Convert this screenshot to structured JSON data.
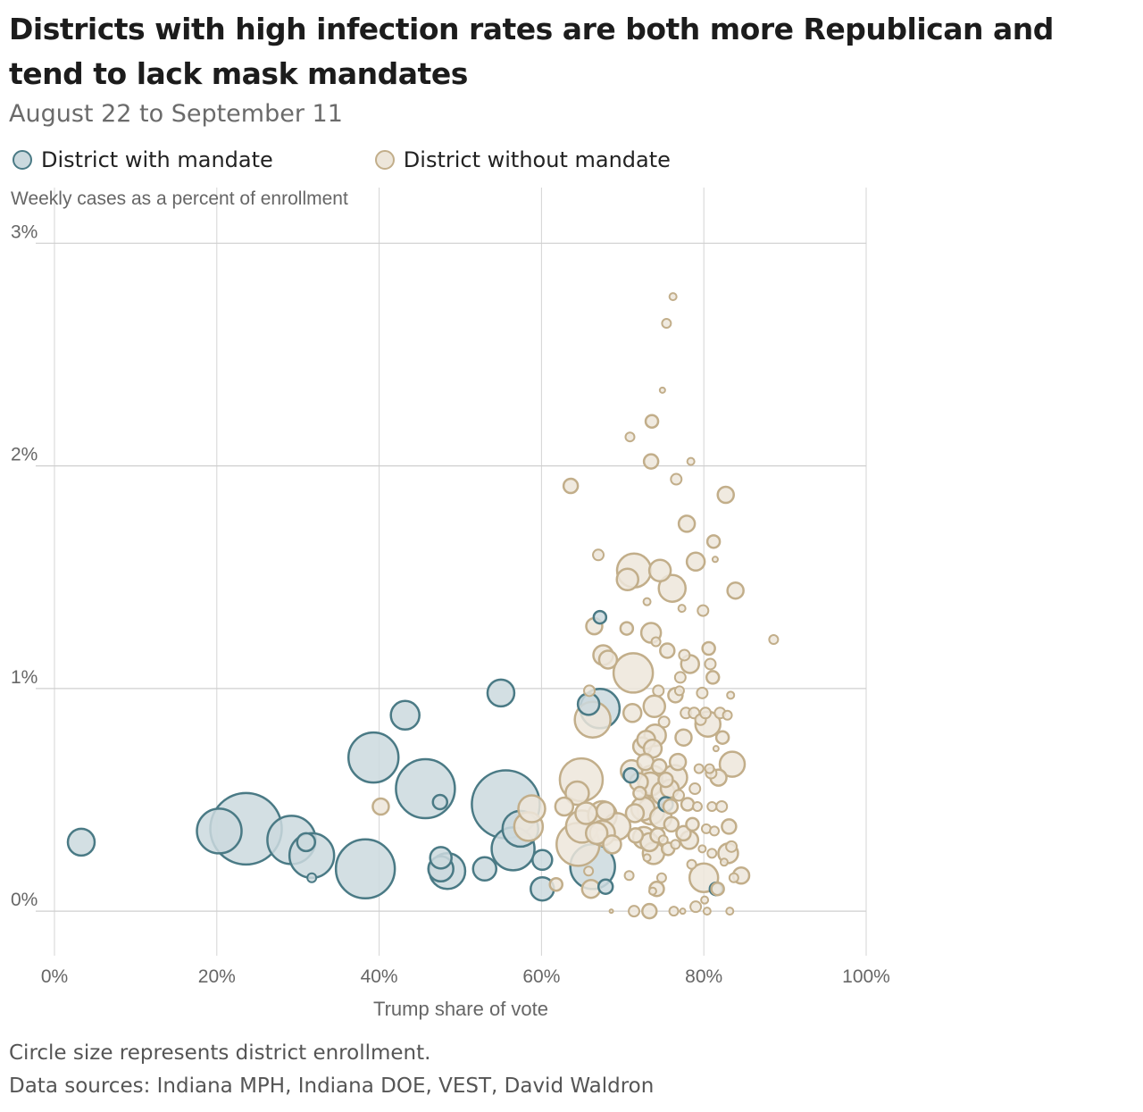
{
  "title": "Districts with high infection rates are both more Republican and tend to lack mask mandates",
  "subtitle": "August 22 to September 11",
  "legend": [
    {
      "label": "District with mandate",
      "fill": "#cbd9de",
      "stroke": "#4a7a85"
    },
    {
      "label": "District without mandate",
      "fill": "#ede6da",
      "stroke": "#c2ae8a"
    }
  ],
  "footnotes": {
    "note": "Circle size represents district enrollment.",
    "sources": "Data sources: Indiana MPH, Indiana DOE, VEST, David Waldron"
  },
  "chart_data": {
    "type": "scatter",
    "xlabel": "Trump share of vote",
    "ylabel": "Weekly cases as a percent of enrollment",
    "xlim": [
      0,
      100
    ],
    "ylim": [
      -0.2,
      3.25
    ],
    "x_ticks": [
      0,
      20,
      40,
      60,
      80,
      100
    ],
    "x_tick_labels": [
      "0%",
      "20%",
      "40%",
      "60%",
      "80%",
      "100%"
    ],
    "y_ticks": [
      0,
      1,
      2,
      3
    ],
    "y_tick_labels": [
      "0%",
      "1%",
      "2%",
      "3%"
    ],
    "grid": true,
    "size_encoding": "district enrollment (relative radius)",
    "series": [
      {
        "name": "District with mandate",
        "color_fill": "#cbd9de",
        "color_stroke": "#4a7a85",
        "points": [
          {
            "x": 3.3,
            "y": 0.31,
            "r": 15
          },
          {
            "x": 20.3,
            "y": 0.36,
            "r": 25
          },
          {
            "x": 23.6,
            "y": 0.37,
            "r": 40
          },
          {
            "x": 29.2,
            "y": 0.32,
            "r": 27
          },
          {
            "x": 31.0,
            "y": 0.31,
            "r": 10
          },
          {
            "x": 31.7,
            "y": 0.25,
            "r": 25
          },
          {
            "x": 31.7,
            "y": 0.15,
            "r": 5
          },
          {
            "x": 38.3,
            "y": 0.19,
            "r": 33
          },
          {
            "x": 39.3,
            "y": 0.69,
            "r": 28
          },
          {
            "x": 43.2,
            "y": 0.88,
            "r": 16
          },
          {
            "x": 45.7,
            "y": 0.55,
            "r": 33
          },
          {
            "x": 47.5,
            "y": 0.49,
            "r": 8
          },
          {
            "x": 47.6,
            "y": 0.24,
            "r": 12
          },
          {
            "x": 47.6,
            "y": 0.19,
            "r": 14
          },
          {
            "x": 48.4,
            "y": 0.18,
            "r": 20
          },
          {
            "x": 53.0,
            "y": 0.19,
            "r": 13
          },
          {
            "x": 55.0,
            "y": 0.98,
            "r": 15
          },
          {
            "x": 55.6,
            "y": 0.48,
            "r": 38
          },
          {
            "x": 56.5,
            "y": 0.28,
            "r": 24
          },
          {
            "x": 57.4,
            "y": 0.37,
            "r": 20
          },
          {
            "x": 60.1,
            "y": 0.23,
            "r": 11
          },
          {
            "x": 60.1,
            "y": 0.1,
            "r": 13
          },
          {
            "x": 65.8,
            "y": 0.93,
            "r": 12
          },
          {
            "x": 66.3,
            "y": 0.2,
            "r": 25
          },
          {
            "x": 67.2,
            "y": 1.32,
            "r": 7
          },
          {
            "x": 67.2,
            "y": 0.91,
            "r": 22
          },
          {
            "x": 67.9,
            "y": 0.11,
            "r": 8
          },
          {
            "x": 71.0,
            "y": 0.61,
            "r": 8
          },
          {
            "x": 75.3,
            "y": 0.48,
            "r": 8
          },
          {
            "x": 81.5,
            "y": 0.1,
            "r": 7
          }
        ]
      },
      {
        "name": "District without mandate",
        "color_fill": "#ede6da",
        "color_stroke": "#c2ae8a",
        "points": [
          {
            "x": 40.2,
            "y": 0.47,
            "r": 9
          },
          {
            "x": 58.4,
            "y": 0.38,
            "r": 16
          },
          {
            "x": 58.8,
            "y": 0.46,
            "r": 15
          },
          {
            "x": 61.8,
            "y": 0.12,
            "r": 7
          },
          {
            "x": 62.8,
            "y": 0.47,
            "r": 10
          },
          {
            "x": 63.6,
            "y": 1.91,
            "r": 8
          },
          {
            "x": 64.4,
            "y": 0.53,
            "r": 13
          },
          {
            "x": 64.5,
            "y": 0.3,
            "r": 24
          },
          {
            "x": 64.9,
            "y": 0.59,
            "r": 24
          },
          {
            "x": 65.0,
            "y": 0.38,
            "r": 18
          },
          {
            "x": 65.5,
            "y": 0.44,
            "r": 12
          },
          {
            "x": 65.8,
            "y": 0.18,
            "r": 5
          },
          {
            "x": 65.9,
            "y": 0.99,
            "r": 6
          },
          {
            "x": 66.1,
            "y": 0.1,
            "r": 10
          },
          {
            "x": 66.3,
            "y": 0.86,
            "r": 20
          },
          {
            "x": 66.5,
            "y": 1.28,
            "r": 9
          },
          {
            "x": 66.8,
            "y": 0.35,
            "r": 12
          },
          {
            "x": 67.0,
            "y": 1.6,
            "r": 6
          },
          {
            "x": 67.5,
            "y": 0.35,
            "r": 14
          },
          {
            "x": 67.5,
            "y": 0.43,
            "r": 16
          },
          {
            "x": 67.6,
            "y": 1.15,
            "r": 11
          },
          {
            "x": 67.9,
            "y": 0.45,
            "r": 10
          },
          {
            "x": 68.2,
            "y": 1.13,
            "r": 10
          },
          {
            "x": 68.6,
            "y": 0.0,
            "r": 2
          },
          {
            "x": 68.7,
            "y": 0.3,
            "r": 10
          },
          {
            "x": 69.3,
            "y": 0.38,
            "r": 15
          },
          {
            "x": 70.5,
            "y": 1.27,
            "r": 7
          },
          {
            "x": 70.6,
            "y": 1.49,
            "r": 12
          },
          {
            "x": 70.8,
            "y": 0.16,
            "r": 5
          },
          {
            "x": 70.9,
            "y": 2.13,
            "r": 5
          },
          {
            "x": 71.1,
            "y": 0.63,
            "r": 12
          },
          {
            "x": 71.2,
            "y": 0.89,
            "r": 10
          },
          {
            "x": 71.3,
            "y": 1.07,
            "r": 22
          },
          {
            "x": 71.4,
            "y": 0.0,
            "r": 6
          },
          {
            "x": 71.4,
            "y": 1.53,
            "r": 19
          },
          {
            "x": 71.5,
            "y": 0.44,
            "r": 10
          },
          {
            "x": 71.6,
            "y": 0.34,
            "r": 8
          },
          {
            "x": 72.0,
            "y": 0.58,
            "r": 10
          },
          {
            "x": 72.1,
            "y": 0.53,
            "r": 7
          },
          {
            "x": 72.4,
            "y": 0.74,
            "r": 10
          },
          {
            "x": 72.5,
            "y": 0.46,
            "r": 13
          },
          {
            "x": 72.6,
            "y": 0.33,
            "r": 12
          },
          {
            "x": 72.8,
            "y": 0.67,
            "r": 9
          },
          {
            "x": 72.9,
            "y": 0.77,
            "r": 10
          },
          {
            "x": 73.0,
            "y": 1.39,
            "r": 4
          },
          {
            "x": 73.0,
            "y": 0.24,
            "r": 4
          },
          {
            "x": 73.3,
            "y": 0.0,
            "r": 8
          },
          {
            "x": 73.3,
            "y": 0.31,
            "r": 10
          },
          {
            "x": 73.4,
            "y": 0.57,
            "r": 13
          },
          {
            "x": 73.5,
            "y": 0.45,
            "r": 15
          },
          {
            "x": 73.5,
            "y": 1.25,
            "r": 11
          },
          {
            "x": 73.5,
            "y": 2.02,
            "r": 8
          },
          {
            "x": 73.6,
            "y": 2.2,
            "r": 7
          },
          {
            "x": 73.6,
            "y": 0.59,
            "r": 16
          },
          {
            "x": 73.7,
            "y": 0.73,
            "r": 10
          },
          {
            "x": 73.7,
            "y": 0.09,
            "r": 4
          },
          {
            "x": 73.8,
            "y": 0.26,
            "r": 12
          },
          {
            "x": 73.9,
            "y": 0.92,
            "r": 12
          },
          {
            "x": 74.0,
            "y": 0.79,
            "r": 12
          },
          {
            "x": 74.1,
            "y": 1.21,
            "r": 5
          },
          {
            "x": 74.2,
            "y": 0.1,
            "r": 8
          },
          {
            "x": 74.3,
            "y": 0.34,
            "r": 8
          },
          {
            "x": 74.4,
            "y": 0.99,
            "r": 6
          },
          {
            "x": 74.5,
            "y": 0.65,
            "r": 8
          },
          {
            "x": 74.6,
            "y": 1.53,
            "r": 12
          },
          {
            "x": 74.7,
            "y": 0.42,
            "r": 12
          },
          {
            "x": 74.8,
            "y": 0.15,
            "r": 5
          },
          {
            "x": 74.9,
            "y": 2.34,
            "r": 3
          },
          {
            "x": 75.0,
            "y": 0.53,
            "r": 13
          },
          {
            "x": 75.0,
            "y": 0.32,
            "r": 5
          },
          {
            "x": 75.1,
            "y": 0.85,
            "r": 6
          },
          {
            "x": 75.3,
            "y": 0.59,
            "r": 8
          },
          {
            "x": 75.4,
            "y": 2.64,
            "r": 5
          },
          {
            "x": 75.5,
            "y": 1.17,
            "r": 8
          },
          {
            "x": 75.6,
            "y": 0.28,
            "r": 7
          },
          {
            "x": 75.8,
            "y": 0.55,
            "r": 10
          },
          {
            "x": 75.9,
            "y": 0.47,
            "r": 8
          },
          {
            "x": 76.0,
            "y": 0.39,
            "r": 8
          },
          {
            "x": 76.1,
            "y": 1.45,
            "r": 15
          },
          {
            "x": 76.2,
            "y": 2.76,
            "r": 4
          },
          {
            "x": 76.3,
            "y": 0.0,
            "r": 5
          },
          {
            "x": 76.4,
            "y": 0.6,
            "r": 14
          },
          {
            "x": 76.5,
            "y": 0.97,
            "r": 8
          },
          {
            "x": 76.5,
            "y": 0.3,
            "r": 5
          },
          {
            "x": 76.6,
            "y": 1.94,
            "r": 6
          },
          {
            "x": 76.8,
            "y": 0.67,
            "r": 9
          },
          {
            "x": 76.9,
            "y": 0.52,
            "r": 6
          },
          {
            "x": 77.0,
            "y": 0.99,
            "r": 5
          },
          {
            "x": 77.1,
            "y": 1.05,
            "r": 6
          },
          {
            "x": 77.3,
            "y": 1.36,
            "r": 4
          },
          {
            "x": 77.4,
            "y": 0.0,
            "r": 3
          },
          {
            "x": 77.5,
            "y": 0.35,
            "r": 8
          },
          {
            "x": 77.5,
            "y": 0.78,
            "r": 9
          },
          {
            "x": 77.6,
            "y": 1.15,
            "r": 6
          },
          {
            "x": 77.8,
            "y": 0.89,
            "r": 6
          },
          {
            "x": 77.9,
            "y": 1.74,
            "r": 9
          },
          {
            "x": 78.0,
            "y": 0.48,
            "r": 7
          },
          {
            "x": 78.2,
            "y": 0.32,
            "r": 10
          },
          {
            "x": 78.3,
            "y": 1.11,
            "r": 10
          },
          {
            "x": 78.4,
            "y": 2.02,
            "r": 4
          },
          {
            "x": 78.5,
            "y": 0.21,
            "r": 5
          },
          {
            "x": 78.6,
            "y": 0.39,
            "r": 7
          },
          {
            "x": 78.8,
            "y": 0.89,
            "r": 6
          },
          {
            "x": 78.9,
            "y": 0.55,
            "r": 6
          },
          {
            "x": 79.0,
            "y": 0.02,
            "r": 6
          },
          {
            "x": 79.0,
            "y": 1.57,
            "r": 10
          },
          {
            "x": 79.2,
            "y": 0.47,
            "r": 5
          },
          {
            "x": 79.4,
            "y": 0.64,
            "r": 5
          },
          {
            "x": 79.6,
            "y": 0.86,
            "r": 6
          },
          {
            "x": 79.8,
            "y": 0.28,
            "r": 4
          },
          {
            "x": 79.8,
            "y": 0.98,
            "r": 6
          },
          {
            "x": 79.9,
            "y": 1.35,
            "r": 6
          },
          {
            "x": 80.0,
            "y": 0.15,
            "r": 16
          },
          {
            "x": 80.1,
            "y": 0.05,
            "r": 4
          },
          {
            "x": 80.2,
            "y": 0.89,
            "r": 6
          },
          {
            "x": 80.3,
            "y": 0.37,
            "r": 5
          },
          {
            "x": 80.4,
            "y": 0.0,
            "r": 4
          },
          {
            "x": 80.5,
            "y": 0.84,
            "r": 14
          },
          {
            "x": 80.6,
            "y": 1.18,
            "r": 7
          },
          {
            "x": 80.7,
            "y": 0.64,
            "r": 5
          },
          {
            "x": 80.8,
            "y": 1.11,
            "r": 6
          },
          {
            "x": 80.9,
            "y": 0.62,
            "r": 6
          },
          {
            "x": 81.0,
            "y": 0.26,
            "r": 5
          },
          {
            "x": 81.0,
            "y": 0.47,
            "r": 5
          },
          {
            "x": 81.1,
            "y": 1.05,
            "r": 7
          },
          {
            "x": 81.2,
            "y": 1.66,
            "r": 7
          },
          {
            "x": 81.3,
            "y": 0.36,
            "r": 5
          },
          {
            "x": 81.4,
            "y": 1.58,
            "r": 3
          },
          {
            "x": 81.5,
            "y": 0.73,
            "r": 3
          },
          {
            "x": 81.7,
            "y": 0.1,
            "r": 7
          },
          {
            "x": 81.8,
            "y": 0.6,
            "r": 9
          },
          {
            "x": 82.0,
            "y": 0.89,
            "r": 6
          },
          {
            "x": 82.2,
            "y": 0.47,
            "r": 6
          },
          {
            "x": 82.3,
            "y": 0.78,
            "r": 7
          },
          {
            "x": 82.5,
            "y": 0.22,
            "r": 4
          },
          {
            "x": 82.7,
            "y": 1.87,
            "r": 9
          },
          {
            "x": 82.9,
            "y": 0.88,
            "r": 5
          },
          {
            "x": 83.0,
            "y": 0.26,
            "r": 11
          },
          {
            "x": 83.1,
            "y": 0.38,
            "r": 8
          },
          {
            "x": 83.2,
            "y": 0.0,
            "r": 4
          },
          {
            "x": 83.3,
            "y": 0.97,
            "r": 4
          },
          {
            "x": 83.4,
            "y": 0.29,
            "r": 6
          },
          {
            "x": 83.5,
            "y": 0.66,
            "r": 14
          },
          {
            "x": 83.7,
            "y": 0.15,
            "r": 5
          },
          {
            "x": 83.9,
            "y": 1.44,
            "r": 9
          },
          {
            "x": 84.6,
            "y": 0.16,
            "r": 9
          },
          {
            "x": 88.6,
            "y": 1.22,
            "r": 5
          }
        ]
      }
    ]
  }
}
